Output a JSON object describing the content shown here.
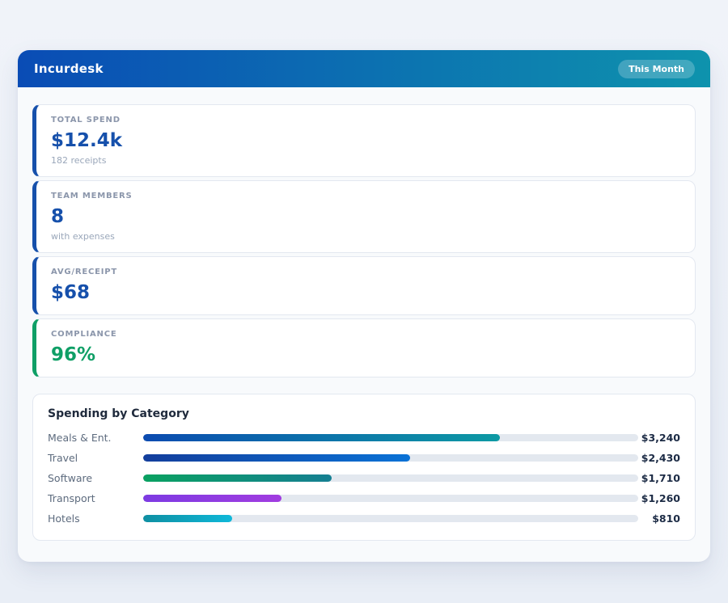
{
  "page": {
    "background": "#edf1f7"
  },
  "header": {
    "title": "Incurdesk",
    "badge": "This Month",
    "gradient_start": "#0a4cb5",
    "gradient_end": "#0e93ad"
  },
  "stats": {
    "items": [
      {
        "label": "TOTAL SPEND",
        "value": "$12.4k",
        "sub": "182 receipts",
        "accent": "#1650ab"
      },
      {
        "label": "TEAM MEMBERS",
        "value": "8",
        "sub": "with expenses",
        "accent": "#1650ab"
      },
      {
        "label": "AVG/RECEIPT",
        "value": "$68",
        "accent": "#1650ab"
      },
      {
        "label": "COMPLIANCE",
        "value": "96%",
        "accent": "#0f9f66"
      }
    ]
  },
  "chart_data": {
    "type": "bar",
    "orientation": "horizontal",
    "title": "Spending by Category",
    "xlim": [
      0,
      4500
    ],
    "categories": [
      "Meals & Ent.",
      "Travel",
      "Software",
      "Transport",
      "Hotels"
    ],
    "values": [
      3240,
      2430,
      1710,
      1260,
      810
    ],
    "track_color": "#e3e8ef",
    "rows": [
      {
        "label": "Meals & Ent.",
        "value": 3240,
        "value_label": "$3,240",
        "percent": 72,
        "color_start": "#0c4bb0",
        "color_end": "#0d9aa4"
      },
      {
        "label": "Travel",
        "value": 2430,
        "value_label": "$2,430",
        "percent": 54,
        "color_start": "#133e9c",
        "color_end": "#0a72d6"
      },
      {
        "label": "Software",
        "value": 1710,
        "value_label": "$1,710",
        "percent": 38,
        "color_start": "#0aa161",
        "color_end": "#157f92"
      },
      {
        "label": "Transport",
        "value": 1260,
        "value_label": "$1,260",
        "percent": 28,
        "color_start": "#7d3be2",
        "color_end": "#a13ce0"
      },
      {
        "label": "Hotels",
        "value": 810,
        "value_label": "$810",
        "percent": 18,
        "color_start": "#0f8fa2",
        "color_end": "#0fb8d9"
      }
    ]
  }
}
